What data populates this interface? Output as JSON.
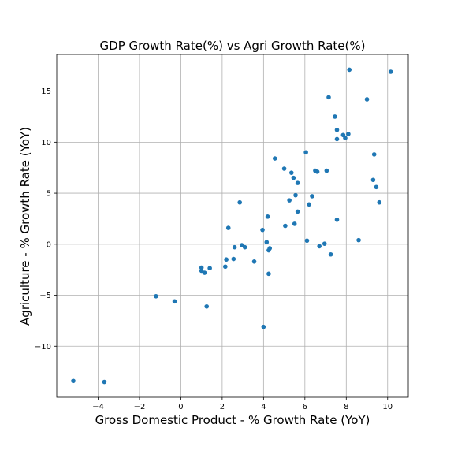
{
  "chart_data": {
    "type": "scatter",
    "title": "GDP Growth Rate(%) vs Agri Growth Rate(%)",
    "xlabel": "Gross Domestic Product - % Growth Rate (YoY)",
    "ylabel": "Agriculture - % Growth Rate (YoY)",
    "xlim": [
      -6,
      11
    ],
    "ylim": [
      -15,
      18.6
    ],
    "xticks": [
      -4,
      -2,
      0,
      2,
      4,
      6,
      8,
      10
    ],
    "yticks": [
      -10,
      -5,
      0,
      5,
      10,
      15
    ],
    "grid": true,
    "marker_color": "#1f77b4",
    "points": [
      {
        "x": -5.2,
        "y": -13.4
      },
      {
        "x": -3.7,
        "y": -13.5
      },
      {
        "x": -1.2,
        "y": -5.1
      },
      {
        "x": -0.3,
        "y": -5.6
      },
      {
        "x": 1.0,
        "y": -2.6
      },
      {
        "x": 1.0,
        "y": -2.3
      },
      {
        "x": 1.15,
        "y": -2.8
      },
      {
        "x": 1.25,
        "y": -6.1
      },
      {
        "x": 1.4,
        "y": -2.35
      },
      {
        "x": 2.15,
        "y": -2.2
      },
      {
        "x": 2.2,
        "y": -1.5
      },
      {
        "x": 2.3,
        "y": 1.6
      },
      {
        "x": 2.55,
        "y": -1.45
      },
      {
        "x": 2.6,
        "y": -0.3
      },
      {
        "x": 2.85,
        "y": 4.1
      },
      {
        "x": 2.95,
        "y": -0.1
      },
      {
        "x": 3.1,
        "y": -0.3
      },
      {
        "x": 3.55,
        "y": -1.7
      },
      {
        "x": 3.95,
        "y": 1.4
      },
      {
        "x": 4.0,
        "y": -8.1
      },
      {
        "x": 4.15,
        "y": 0.2
      },
      {
        "x": 4.2,
        "y": 2.7
      },
      {
        "x": 4.25,
        "y": -0.6
      },
      {
        "x": 4.3,
        "y": -0.4
      },
      {
        "x": 4.25,
        "y": -2.9
      },
      {
        "x": 4.55,
        "y": 8.4
      },
      {
        "x": 5.0,
        "y": 7.4
      },
      {
        "x": 5.05,
        "y": 1.8
      },
      {
        "x": 5.25,
        "y": 4.3
      },
      {
        "x": 5.35,
        "y": 7.0
      },
      {
        "x": 5.45,
        "y": 6.5
      },
      {
        "x": 5.5,
        "y": 2.0
      },
      {
        "x": 5.55,
        "y": 4.8
      },
      {
        "x": 5.65,
        "y": 6.0
      },
      {
        "x": 5.65,
        "y": 3.2
      },
      {
        "x": 6.05,
        "y": 9.0
      },
      {
        "x": 6.1,
        "y": 0.35
      },
      {
        "x": 6.2,
        "y": 3.9
      },
      {
        "x": 6.35,
        "y": 4.7
      },
      {
        "x": 6.5,
        "y": 7.2
      },
      {
        "x": 6.6,
        "y": 7.1
      },
      {
        "x": 6.7,
        "y": -0.2
      },
      {
        "x": 6.95,
        "y": 0.05
      },
      {
        "x": 7.05,
        "y": 7.2
      },
      {
        "x": 7.15,
        "y": 14.4
      },
      {
        "x": 7.25,
        "y": -1.0
      },
      {
        "x": 7.45,
        "y": 12.5
      },
      {
        "x": 7.55,
        "y": 2.4
      },
      {
        "x": 7.55,
        "y": 11.2
      },
      {
        "x": 7.55,
        "y": 10.3
      },
      {
        "x": 7.85,
        "y": 10.7
      },
      {
        "x": 7.95,
        "y": 10.4
      },
      {
        "x": 8.1,
        "y": 10.8
      },
      {
        "x": 8.15,
        "y": 17.1
      },
      {
        "x": 8.6,
        "y": 0.4
      },
      {
        "x": 9.0,
        "y": 14.2
      },
      {
        "x": 9.3,
        "y": 6.3
      },
      {
        "x": 9.35,
        "y": 8.8
      },
      {
        "x": 9.45,
        "y": 5.6
      },
      {
        "x": 9.6,
        "y": 4.1
      },
      {
        "x": 10.15,
        "y": 16.9
      }
    ]
  }
}
